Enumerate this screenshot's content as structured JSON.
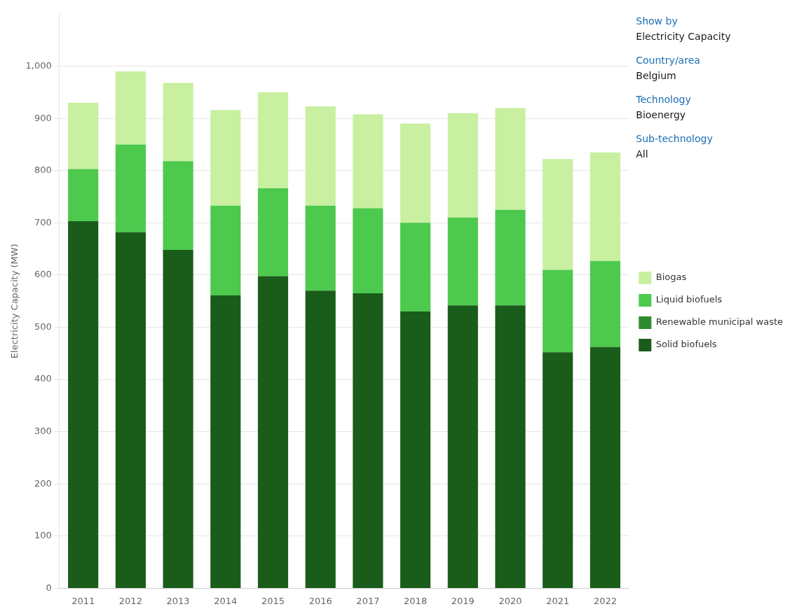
{
  "chart_data": {
    "type": "bar",
    "stacked": true,
    "categories": [
      "2011",
      "2012",
      "2013",
      "2014",
      "2015",
      "2016",
      "2017",
      "2018",
      "2019",
      "2020",
      "2021",
      "2022"
    ],
    "series": [
      {
        "name": "Solid biofuels",
        "color": "#1a5c1a",
        "values": [
          703,
          682,
          648,
          561,
          598,
          570,
          565,
          530,
          542,
          542,
          452,
          462
        ]
      },
      {
        "name": "Renewable municipal waste",
        "color": "#2e8b2e",
        "values": [
          0,
          0,
          0,
          0,
          0,
          0,
          0,
          0,
          0,
          0,
          0,
          0
        ]
      },
      {
        "name": "Liquid biofuels",
        "color": "#4dc94d",
        "values": [
          100,
          168,
          170,
          172,
          168,
          163,
          163,
          170,
          168,
          183,
          158,
          165
        ]
      },
      {
        "name": "Biogas",
        "color": "#c8f0a0",
        "values": [
          127,
          140,
          150,
          183,
          184,
          190,
          180,
          190,
          200,
          195,
          212,
          208
        ]
      }
    ],
    "y_label": "Electricity Capacity (MW)",
    "ylim": [
      0,
      1100
    ],
    "yticks": [
      0,
      100,
      200,
      300,
      400,
      500,
      600,
      700,
      800,
      900,
      {
        "value": 1000,
        "label": "1,000"
      }
    ],
    "grid": true,
    "legend": "right",
    "annotations": [
      {
        "text": "Show by",
        "color": "#1a6eb5"
      },
      {
        "text": "Electricity Capacity",
        "color": "#1a1a1a"
      },
      {
        "text": "Country/area",
        "color": "#1a6eb5"
      },
      {
        "text": "Belgium",
        "color": "#1a1a1a"
      },
      {
        "text": "Technology",
        "color": "#1a6eb5"
      },
      {
        "text": "Bioenergy",
        "color": "#1a1a1a"
      },
      {
        "text": "Sub-technology",
        "color": "#1a6eb5"
      },
      {
        "text": "All",
        "color": "#1a1a1a"
      }
    ]
  }
}
